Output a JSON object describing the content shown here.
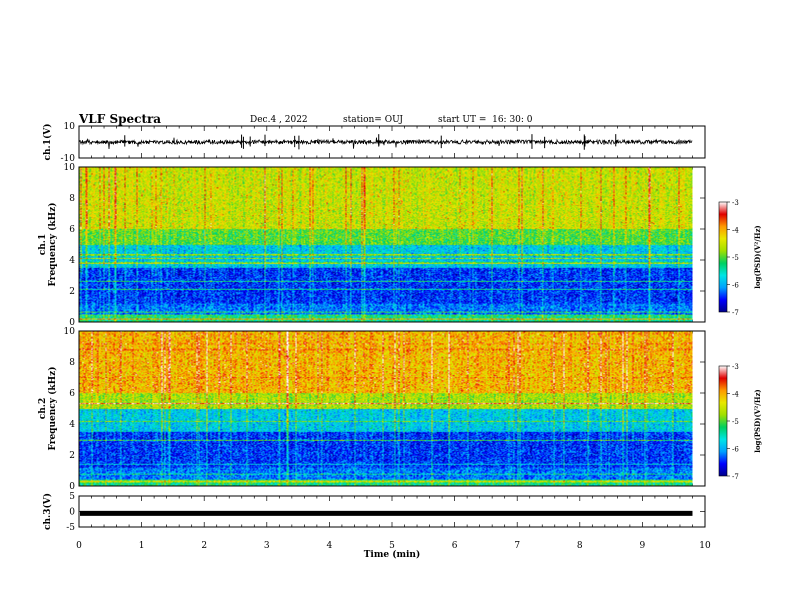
{
  "header": {
    "title": "VLF Spectra",
    "date": "Dec.4 , 2022",
    "station": "station= OUJ",
    "start": "start UT =  16: 30: 0"
  },
  "chart_data": [
    {
      "type": "line",
      "name": "ch1-waveform",
      "ylabel": "ch.1(V)",
      "ylim": [
        -10,
        10
      ],
      "yticks": [
        "10",
        "-10"
      ],
      "baseline": 0,
      "xlim": [
        0,
        10
      ]
    },
    {
      "type": "heatmap",
      "name": "ch1-spectrogram",
      "ylabel": "ch.1\nFrequency  (kHz)",
      "ylim": [
        0,
        10
      ],
      "yticks": [
        "0",
        "2",
        "4",
        "6",
        "8",
        "10"
      ],
      "xlim": [
        0,
        10
      ],
      "data_end_min": 9.8,
      "colorbar": {
        "label": "log(PSD)(V²/Hz)",
        "range": [
          -7,
          -3
        ],
        "ticks": [
          "-3",
          "-4",
          "-5",
          "-6",
          "-7"
        ]
      }
    },
    {
      "type": "heatmap",
      "name": "ch2-spectrogram",
      "ylabel": "ch.2\nFrequency  (kHz)",
      "ylim": [
        0,
        10
      ],
      "yticks": [
        "0",
        "2",
        "4",
        "6",
        "8",
        "10"
      ],
      "xlim": [
        0,
        10
      ],
      "data_end_min": 9.8,
      "colorbar": {
        "label": "log(PSD)(V²/Hz)",
        "range": [
          -7,
          -3
        ],
        "ticks": [
          "-3",
          "-4",
          "-5",
          "-6",
          "-7"
        ]
      }
    },
    {
      "type": "line",
      "name": "ch3-waveform",
      "ylabel": "ch.3(V)",
      "ylim": [
        -5,
        5
      ],
      "yticks": [
        "5",
        "0",
        "-5"
      ],
      "baseline": -0.6,
      "xlim": [
        0,
        10
      ]
    }
  ],
  "xaxis": {
    "label": "Time  (min)",
    "ticks": [
      "0",
      "1",
      "2",
      "3",
      "4",
      "5",
      "6",
      "7",
      "8",
      "9",
      "10"
    ]
  },
  "colors": {
    "colormap": [
      "#00008b",
      "#0000ff",
      "#00a0ff",
      "#00e5e5",
      "#00d060",
      "#a0e000",
      "#e8e800",
      "#ff9900",
      "#e00000",
      "#ffffff"
    ]
  }
}
